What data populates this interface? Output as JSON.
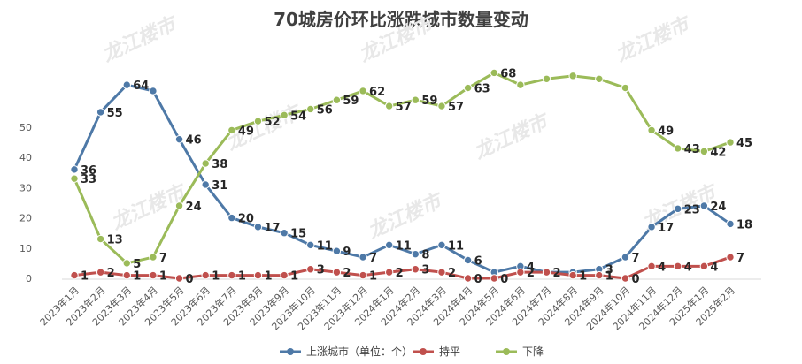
{
  "chart_data": {
    "type": "line",
    "title": "70城房价环比涨跌城市数量变动",
    "categories": [
      "2023年1月",
      "2023年2月",
      "2023年3月",
      "2023年4月",
      "2023年5月",
      "2023年6月",
      "2023年7月",
      "2023年8月",
      "2023年9月",
      "2023年10月",
      "2023年11月",
      "2023年12月",
      "2024年1月",
      "2024年2月",
      "2024年3月",
      "2024年4月",
      "2024年5月",
      "2024年6月",
      "2024年7月",
      "2024年8月",
      "2024年9月",
      "2024年10月",
      "2024年11月",
      "2024年12月",
      "2025年1月",
      "2025年2月"
    ],
    "yticks": [
      0,
      10,
      20,
      30,
      40,
      50
    ],
    "ylim": [
      0,
      70
    ],
    "grid": false,
    "legend_position": "bottom",
    "watermark": "龙江楼市",
    "series": [
      {
        "name": "上涨城市（单位：个）",
        "color": "#4e79a7",
        "values": [
          36,
          55,
          64,
          62,
          46,
          31,
          20,
          17,
          15,
          11,
          9,
          7,
          11,
          8,
          11,
          6,
          2,
          4,
          2,
          2,
          3,
          7,
          17,
          23,
          24,
          18
        ]
      },
      {
        "name": "持平",
        "color": "#c0504d",
        "values": [
          1,
          2,
          1,
          1,
          0,
          1,
          1,
          1,
          1,
          3,
          2,
          1,
          2,
          3,
          2,
          0,
          0,
          2,
          2,
          1,
          1,
          0,
          4,
          4,
          4,
          7
        ]
      },
      {
        "name": "下降",
        "color": "#9bbb59",
        "values": [
          33,
          13,
          5,
          7,
          24,
          38,
          49,
          52,
          54,
          56,
          59,
          62,
          57,
          59,
          57,
          63,
          68,
          64,
          66,
          67,
          66,
          63,
          49,
          43,
          42,
          45
        ]
      }
    ],
    "labeled_points": [
      {
        "series": 0,
        "index": 0,
        "text": "36"
      },
      {
        "series": 0,
        "index": 1,
        "text": "55"
      },
      {
        "series": 0,
        "index": 2,
        "text": "64"
      },
      {
        "series": 0,
        "index": 4,
        "text": "46"
      },
      {
        "series": 0,
        "index": 5,
        "text": "31"
      },
      {
        "series": 0,
        "index": 6,
        "text": "20"
      },
      {
        "series": 0,
        "index": 7,
        "text": "17"
      },
      {
        "series": 0,
        "index": 8,
        "text": "15"
      },
      {
        "series": 0,
        "index": 9,
        "text": "11"
      },
      {
        "series": 0,
        "index": 10,
        "text": "9"
      },
      {
        "series": 0,
        "index": 11,
        "text": "7"
      },
      {
        "series": 0,
        "index": 12,
        "text": "11"
      },
      {
        "series": 0,
        "index": 13,
        "text": "8"
      },
      {
        "series": 0,
        "index": 14,
        "text": "11"
      },
      {
        "series": 0,
        "index": 15,
        "text": "6"
      },
      {
        "series": 0,
        "index": 17,
        "text": "4"
      },
      {
        "series": 0,
        "index": 20,
        "text": "3"
      },
      {
        "series": 0,
        "index": 21,
        "text": "7"
      },
      {
        "series": 0,
        "index": 22,
        "text": "17"
      },
      {
        "series": 0,
        "index": 23,
        "text": "23"
      },
      {
        "series": 0,
        "index": 24,
        "text": "24"
      },
      {
        "series": 0,
        "index": 25,
        "text": "18"
      },
      {
        "series": 1,
        "index": 0,
        "text": "1"
      },
      {
        "series": 1,
        "index": 1,
        "text": "2"
      },
      {
        "series": 1,
        "index": 2,
        "text": "1"
      },
      {
        "series": 1,
        "index": 3,
        "text": "1"
      },
      {
        "series": 1,
        "index": 4,
        "text": "0"
      },
      {
        "series": 1,
        "index": 5,
        "text": "1"
      },
      {
        "series": 1,
        "index": 6,
        "text": "1"
      },
      {
        "series": 1,
        "index": 7,
        "text": "1"
      },
      {
        "series": 1,
        "index": 8,
        "text": "1"
      },
      {
        "series": 1,
        "index": 9,
        "text": "3"
      },
      {
        "series": 1,
        "index": 10,
        "text": "2"
      },
      {
        "series": 1,
        "index": 11,
        "text": "1"
      },
      {
        "series": 1,
        "index": 12,
        "text": "2"
      },
      {
        "series": 1,
        "index": 13,
        "text": "3"
      },
      {
        "series": 1,
        "index": 14,
        "text": "2"
      },
      {
        "series": 1,
        "index": 15,
        "text": "0"
      },
      {
        "series": 1,
        "index": 16,
        "text": "0"
      },
      {
        "series": 1,
        "index": 17,
        "text": "2"
      },
      {
        "series": 1,
        "index": 18,
        "text": "2"
      },
      {
        "series": 1,
        "index": 19,
        "text": "1"
      },
      {
        "series": 1,
        "index": 20,
        "text": "1"
      },
      {
        "series": 1,
        "index": 21,
        "text": "0"
      },
      {
        "series": 1,
        "index": 22,
        "text": "4"
      },
      {
        "series": 1,
        "index": 23,
        "text": "4"
      },
      {
        "series": 1,
        "index": 24,
        "text": "4"
      },
      {
        "series": 1,
        "index": 25,
        "text": "7"
      },
      {
        "series": 2,
        "index": 0,
        "text": "33"
      },
      {
        "series": 2,
        "index": 1,
        "text": "13"
      },
      {
        "series": 2,
        "index": 2,
        "text": "5"
      },
      {
        "series": 2,
        "index": 3,
        "text": "7"
      },
      {
        "series": 2,
        "index": 4,
        "text": "24"
      },
      {
        "series": 2,
        "index": 5,
        "text": "38"
      },
      {
        "series": 2,
        "index": 6,
        "text": "49"
      },
      {
        "series": 2,
        "index": 7,
        "text": "52"
      },
      {
        "series": 2,
        "index": 8,
        "text": "54"
      },
      {
        "series": 2,
        "index": 9,
        "text": "56"
      },
      {
        "series": 2,
        "index": 10,
        "text": "59"
      },
      {
        "series": 2,
        "index": 11,
        "text": "62"
      },
      {
        "series": 2,
        "index": 12,
        "text": "57"
      },
      {
        "series": 2,
        "index": 13,
        "text": "59"
      },
      {
        "series": 2,
        "index": 14,
        "text": "57"
      },
      {
        "series": 2,
        "index": 15,
        "text": "63"
      },
      {
        "series": 2,
        "index": 16,
        "text": "68"
      },
      {
        "series": 2,
        "index": 22,
        "text": "49"
      },
      {
        "series": 2,
        "index": 23,
        "text": "43"
      },
      {
        "series": 2,
        "index": 24,
        "text": "42"
      },
      {
        "series": 2,
        "index": 25,
        "text": "45"
      }
    ]
  }
}
